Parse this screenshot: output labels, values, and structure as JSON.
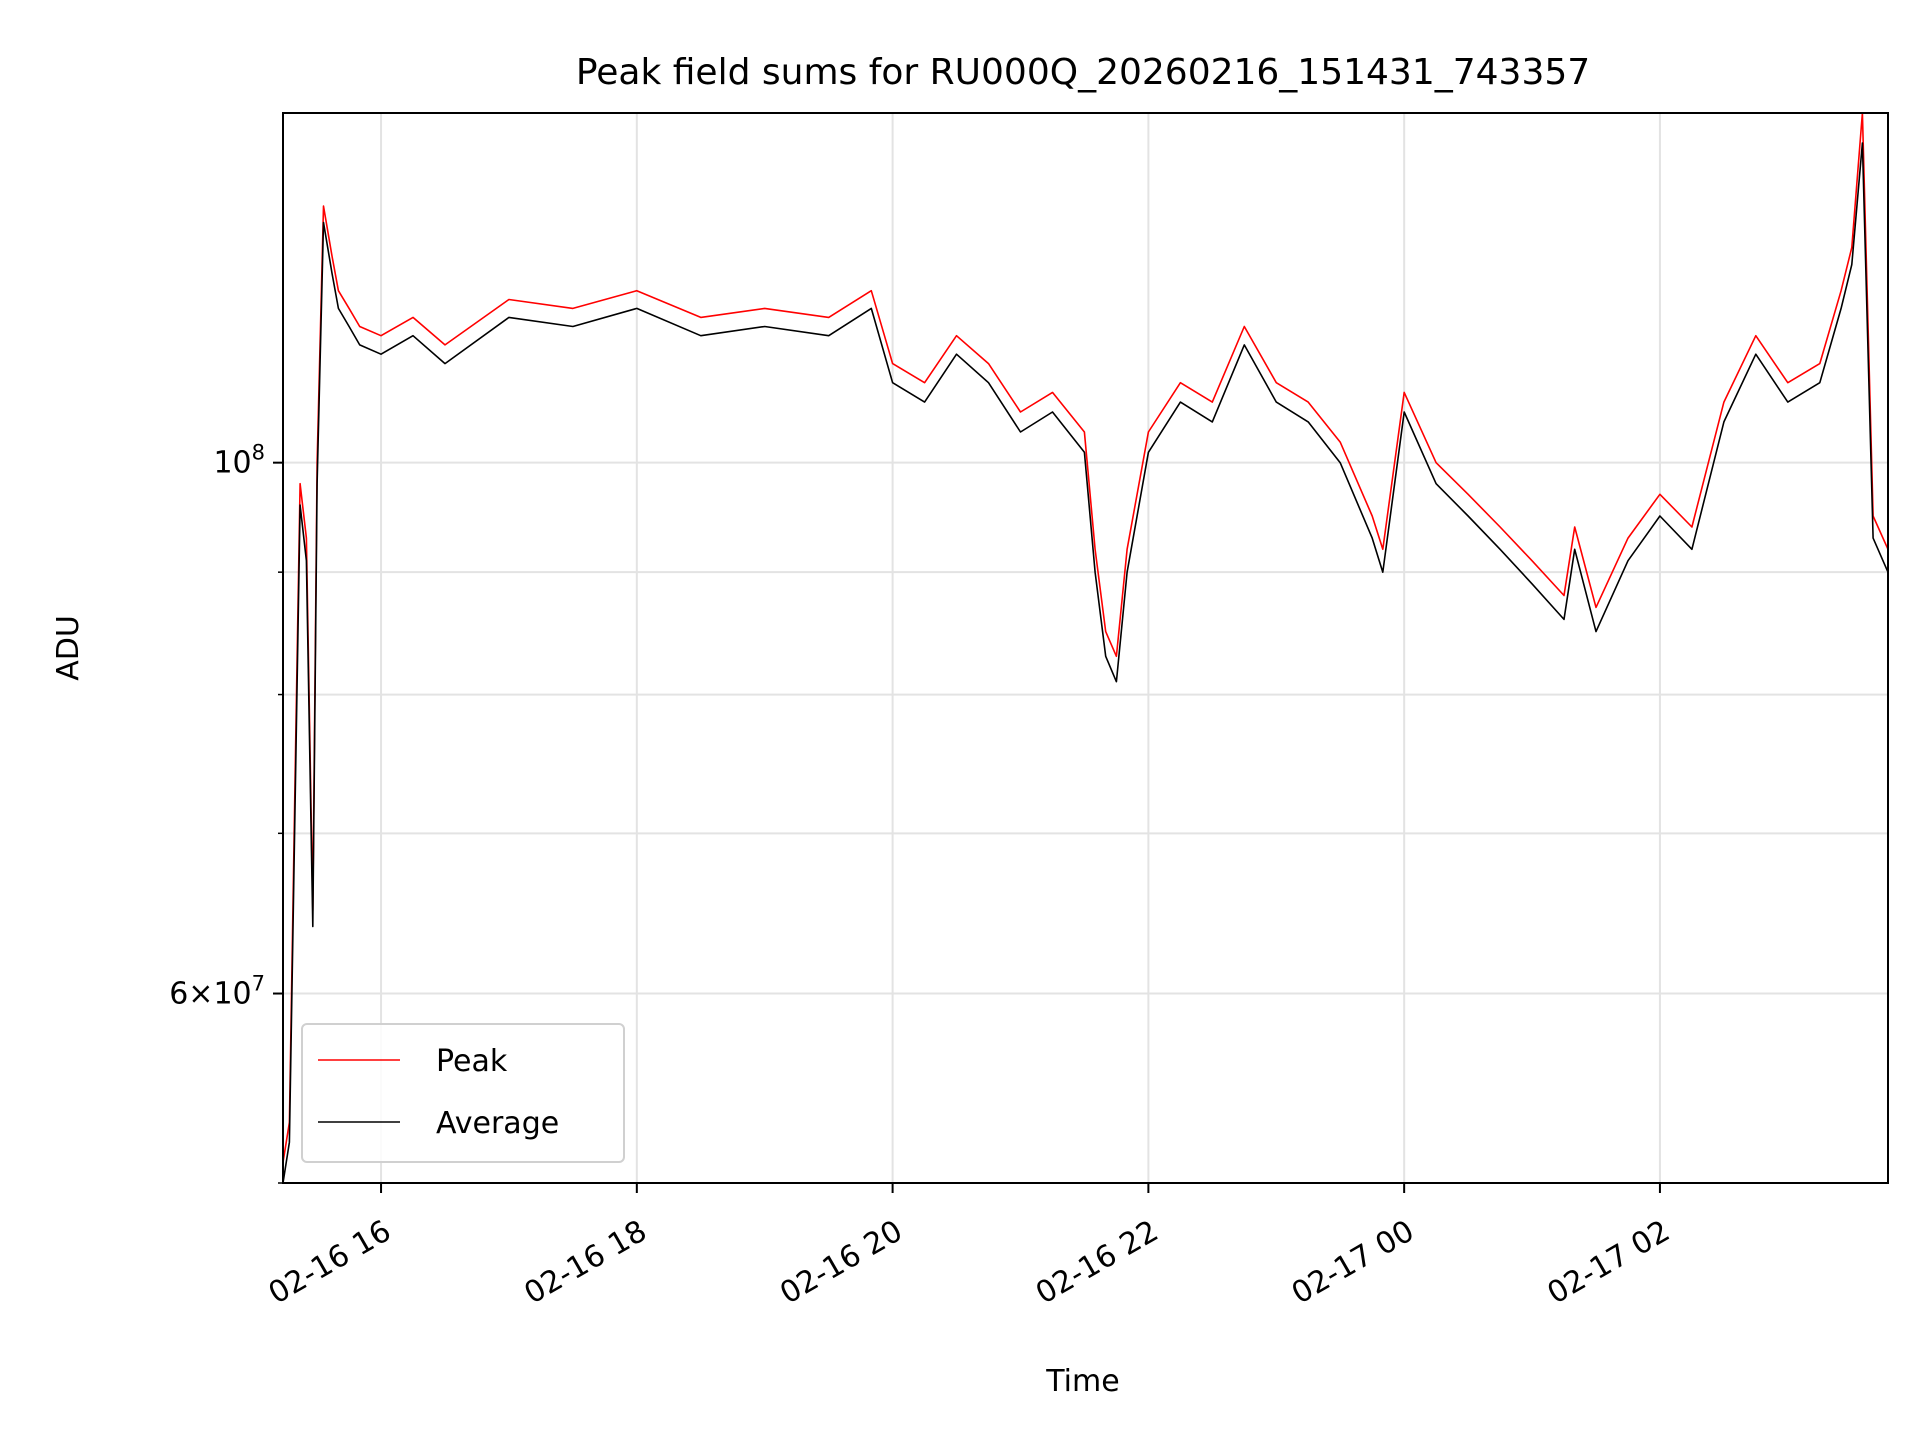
{
  "chart_data": {
    "type": "line",
    "title": "Peak field sums for RU000Q_20260216_151431_743357",
    "xlabel": "Time",
    "ylabel": "ADU",
    "xscale": "time",
    "yscale": "log",
    "grid": true,
    "legend_position": "lower-left",
    "xlim": [
      "2026-02-16 15:14",
      "2026-02-17 03:47"
    ],
    "ylim": [
      50000000,
      140000000
    ],
    "x_ticks": [
      {
        "value": "2026-02-16 16:00",
        "label": "02-16 16"
      },
      {
        "value": "2026-02-16 18:00",
        "label": "02-16 18"
      },
      {
        "value": "2026-02-16 20:00",
        "label": "02-16 20"
      },
      {
        "value": "2026-02-16 22:00",
        "label": "02-16 22"
      },
      {
        "value": "2026-02-17 00:00",
        "label": "02-17 00"
      },
      {
        "value": "2026-02-17 02:00",
        "label": "02-17 02"
      }
    ],
    "y_major_ticks": [
      {
        "value": 100000000,
        "label_base": "10",
        "label_exp": "8"
      },
      {
        "value": 60000000,
        "label_mant": "6",
        "label_base": "10",
        "label_exp": "7"
      }
    ],
    "y_minor_ticks": [
      50000000,
      70000000,
      80000000,
      90000000
    ],
    "series": [
      {
        "name": "Peak",
        "color": "#ff0000",
        "x": [
          "2026-02-16 15:14",
          "2026-02-16 15:17",
          "2026-02-16 15:20",
          "2026-02-16 15:22",
          "2026-02-16 15:25",
          "2026-02-16 15:28",
          "2026-02-16 15:30",
          "2026-02-16 15:33",
          "2026-02-16 15:37",
          "2026-02-16 15:40",
          "2026-02-16 15:45",
          "2026-02-16 15:50",
          "2026-02-16 16:00",
          "2026-02-16 16:15",
          "2026-02-16 16:30",
          "2026-02-16 17:00",
          "2026-02-16 17:30",
          "2026-02-16 18:00",
          "2026-02-16 18:30",
          "2026-02-16 19:00",
          "2026-02-16 19:30",
          "2026-02-16 19:50",
          "2026-02-16 20:00",
          "2026-02-16 20:15",
          "2026-02-16 20:30",
          "2026-02-16 20:45",
          "2026-02-16 21:00",
          "2026-02-16 21:15",
          "2026-02-16 21:30",
          "2026-02-16 21:35",
          "2026-02-16 21:40",
          "2026-02-16 21:45",
          "2026-02-16 21:50",
          "2026-02-16 22:00",
          "2026-02-16 22:15",
          "2026-02-16 22:30",
          "2026-02-16 22:45",
          "2026-02-16 23:00",
          "2026-02-16 23:15",
          "2026-02-16 23:30",
          "2026-02-16 23:45",
          "2026-02-16 23:50",
          "2026-02-17 00:00",
          "2026-02-17 00:15",
          "2026-02-17 00:30",
          "2026-02-17 00:45",
          "2026-02-17 01:00",
          "2026-02-17 01:15",
          "2026-02-17 01:20",
          "2026-02-17 01:30",
          "2026-02-17 01:45",
          "2026-02-17 02:00",
          "2026-02-17 02:15",
          "2026-02-17 02:30",
          "2026-02-17 02:45",
          "2026-02-17 03:00",
          "2026-02-17 03:15",
          "2026-02-17 03:25",
          "2026-02-17 03:30",
          "2026-02-17 03:35",
          "2026-02-17 03:40",
          "2026-02-17 03:47"
        ],
        "y": [
          51000000,
          53000000,
          77000000,
          98000000,
          93000000,
          65000000,
          100000000,
          128000000,
          122000000,
          118000000,
          116000000,
          114000000,
          113000000,
          115000000,
          112000000,
          117000000,
          116000000,
          118000000,
          115000000,
          116000000,
          115000000,
          118000000,
          110000000,
          108000000,
          113000000,
          110000000,
          105000000,
          107000000,
          103000000,
          92000000,
          85000000,
          83000000,
          92000000,
          103000000,
          108000000,
          106000000,
          114000000,
          108000000,
          106000000,
          102000000,
          95000000,
          92000000,
          107000000,
          100000000,
          97000000,
          94000000,
          91000000,
          88000000,
          94000000,
          87000000,
          93000000,
          97000000,
          94000000,
          106000000,
          113000000,
          108000000,
          110000000,
          118000000,
          123000000,
          140000000,
          95000000,
          92000000
        ]
      },
      {
        "name": "Average",
        "color": "#000000",
        "x": [
          "2026-02-16 15:14",
          "2026-02-16 15:17",
          "2026-02-16 15:20",
          "2026-02-16 15:22",
          "2026-02-16 15:25",
          "2026-02-16 15:28",
          "2026-02-16 15:30",
          "2026-02-16 15:33",
          "2026-02-16 15:37",
          "2026-02-16 15:40",
          "2026-02-16 15:45",
          "2026-02-16 15:50",
          "2026-02-16 16:00",
          "2026-02-16 16:15",
          "2026-02-16 16:30",
          "2026-02-16 17:00",
          "2026-02-16 17:30",
          "2026-02-16 18:00",
          "2026-02-16 18:30",
          "2026-02-16 19:00",
          "2026-02-16 19:30",
          "2026-02-16 19:50",
          "2026-02-16 20:00",
          "2026-02-16 20:15",
          "2026-02-16 20:30",
          "2026-02-16 20:45",
          "2026-02-16 21:00",
          "2026-02-16 21:15",
          "2026-02-16 21:30",
          "2026-02-16 21:35",
          "2026-02-16 21:40",
          "2026-02-16 21:45",
          "2026-02-16 21:50",
          "2026-02-16 22:00",
          "2026-02-16 22:15",
          "2026-02-16 22:30",
          "2026-02-16 22:45",
          "2026-02-16 23:00",
          "2026-02-16 23:15",
          "2026-02-16 23:30",
          "2026-02-16 23:45",
          "2026-02-16 23:50",
          "2026-02-17 00:00",
          "2026-02-17 00:15",
          "2026-02-17 00:30",
          "2026-02-17 00:45",
          "2026-02-17 01:00",
          "2026-02-17 01:15",
          "2026-02-17 01:20",
          "2026-02-17 01:30",
          "2026-02-17 01:45",
          "2026-02-17 02:00",
          "2026-02-17 02:15",
          "2026-02-17 02:30",
          "2026-02-17 02:45",
          "2026-02-17 03:00",
          "2026-02-17 03:15",
          "2026-02-17 03:25",
          "2026-02-17 03:30",
          "2026-02-17 03:35",
          "2026-02-17 03:40",
          "2026-02-17 03:47"
        ],
        "y": [
          50000000,
          52000000,
          75000000,
          96000000,
          91000000,
          64000000,
          98000000,
          126000000,
          120000000,
          116000000,
          114000000,
          112000000,
          111000000,
          113000000,
          110000000,
          115000000,
          114000000,
          116000000,
          113000000,
          114000000,
          113000000,
          116000000,
          108000000,
          106000000,
          111000000,
          108000000,
          103000000,
          105000000,
          101000000,
          90000000,
          83000000,
          81000000,
          90000000,
          101000000,
          106000000,
          104000000,
          112000000,
          106000000,
          104000000,
          100000000,
          93000000,
          90000000,
          105000000,
          98000000,
          95000000,
          92000000,
          89000000,
          86000000,
          92000000,
          85000000,
          91000000,
          95000000,
          92000000,
          104000000,
          111000000,
          106000000,
          108000000,
          116000000,
          121000000,
          136000000,
          93000000,
          90000000
        ]
      }
    ]
  }
}
